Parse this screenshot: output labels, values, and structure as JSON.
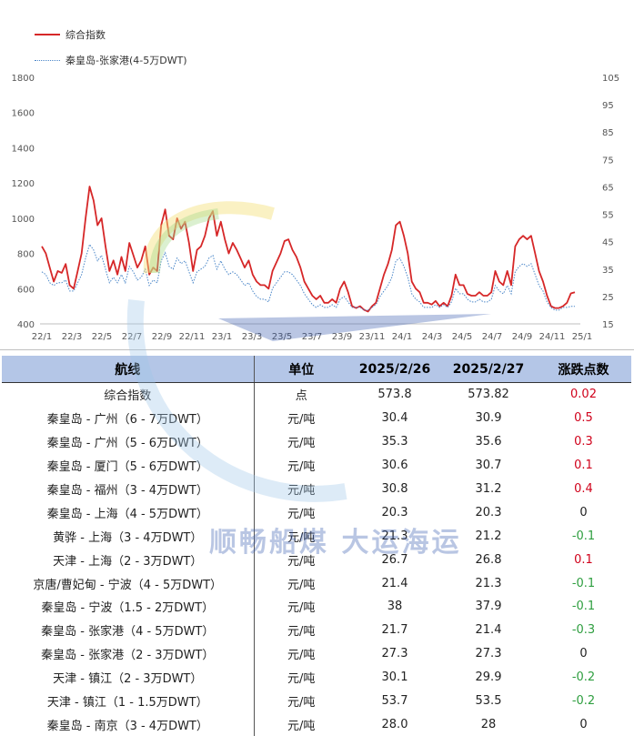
{
  "chart_data": {
    "type": "line",
    "legend": [
      "综合指数",
      "秦皇岛-张家港(4-5万DWT)"
    ],
    "legend_placement": "top-left",
    "colors": {
      "index": "#d62728",
      "route": "#4a86c8"
    },
    "x_ticks": [
      "22/1",
      "22/3",
      "22/5",
      "22/7",
      "22/9",
      "22/11",
      "23/1",
      "23/3",
      "23/5",
      "23/7",
      "23/9",
      "23/11",
      "24/1",
      "24/3",
      "24/5",
      "24/7",
      "24/9",
      "24/11",
      "25/1"
    ],
    "y_left_ticks": [
      "400",
      "600",
      "800",
      "1000",
      "1200",
      "1400",
      "1600",
      "1800"
    ],
    "y_left_range": [
      400,
      1800
    ],
    "y_right_ticks": [
      "15",
      "25",
      "35",
      "45",
      "55",
      "65",
      "75",
      "85",
      "95",
      "105"
    ],
    "y_right_range": [
      15,
      105
    ],
    "grid": false,
    "series": [
      {
        "name": "综合指数",
        "axis": "left",
        "values": [
          840,
          800,
          720,
          640,
          700,
          690,
          740,
          620,
          600,
          700,
          800,
          1000,
          1180,
          1100,
          960,
          1000,
          840,
          700,
          760,
          680,
          780,
          700,
          860,
          790,
          720,
          760,
          840,
          680,
          720,
          700,
          960,
          1050,
          900,
          880,
          1000,
          940,
          980,
          860,
          700,
          820,
          840,
          900,
          1000,
          1040,
          900,
          980,
          880,
          800,
          860,
          820,
          770,
          720,
          760,
          680,
          640,
          620,
          620,
          600,
          700,
          750,
          800,
          870,
          880,
          820,
          780,
          720,
          640,
          600,
          560,
          540,
          560,
          520,
          520,
          540,
          520,
          600,
          640,
          580,
          500,
          490,
          500,
          480,
          470,
          500,
          520,
          600,
          680,
          740,
          820,
          960,
          980,
          900,
          800,
          640,
          600,
          580,
          520,
          520,
          510,
          530,
          500,
          520,
          500,
          560,
          680,
          620,
          620,
          570,
          560,
          560,
          580,
          560,
          560,
          580,
          700,
          640,
          620,
          700,
          620,
          840,
          880,
          900,
          880,
          900,
          800,
          700,
          640,
          560,
          500,
          490,
          490,
          500,
          520,
          573,
          580
        ]
      },
      {
        "name": "秦皇岛-张家港(4-5万DWT)",
        "axis": "right",
        "values": [
          34,
          33,
          30,
          29,
          30,
          30,
          31,
          27,
          27,
          30,
          33,
          39,
          44,
          42,
          38,
          40,
          35,
          30,
          32,
          30,
          33,
          30,
          36,
          34,
          31,
          32,
          35,
          29,
          31,
          30,
          38,
          41,
          36,
          35,
          39,
          37,
          38,
          34,
          30,
          34,
          35,
          36,
          39,
          40,
          35,
          38,
          35,
          33,
          34,
          33,
          31,
          29,
          30,
          27,
          25,
          24,
          24,
          23,
          28,
          30,
          32,
          34,
          34,
          33,
          31,
          29,
          26,
          24,
          22,
          21,
          22,
          21,
          21,
          22,
          21,
          24,
          25,
          23,
          21,
          21,
          21,
          20,
          20,
          21,
          22,
          25,
          27,
          29,
          32,
          38,
          39,
          36,
          32,
          26,
          24,
          23,
          21,
          21,
          21,
          22,
          21,
          22,
          21,
          23,
          28,
          26,
          26,
          24,
          23,
          23,
          24,
          23,
          23,
          24,
          29,
          27,
          26,
          29,
          26,
          34,
          36,
          37,
          36,
          37,
          33,
          29,
          27,
          23,
          21,
          20,
          20,
          21,
          21,
          21.4,
          21.4
        ]
      }
    ]
  },
  "table": {
    "headers": [
      "航线",
      "单位",
      "2025/2/26",
      "2025/2/27",
      "涨跌点数"
    ],
    "rows": [
      {
        "route": "综合指数",
        "unit": "点",
        "v1": "573.8",
        "v2": "573.82",
        "change": "0.02",
        "dir": "up"
      },
      {
        "route": "秦皇岛 - 广州（6 - 7万DWT）",
        "unit": "元/吨",
        "v1": "30.4",
        "v2": "30.9",
        "change": "0.5",
        "dir": "up"
      },
      {
        "route": "秦皇岛 - 广州（5 - 6万DWT）",
        "unit": "元/吨",
        "v1": "35.3",
        "v2": "35.6",
        "change": "0.3",
        "dir": "up"
      },
      {
        "route": "秦皇岛 - 厦门（5 - 6万DWT）",
        "unit": "元/吨",
        "v1": "30.6",
        "v2": "30.7",
        "change": "0.1",
        "dir": "up"
      },
      {
        "route": "秦皇岛 - 福州（3 - 4万DWT）",
        "unit": "元/吨",
        "v1": "30.8",
        "v2": "31.2",
        "change": "0.4",
        "dir": "up"
      },
      {
        "route": "秦皇岛 - 上海（4 - 5万DWT）",
        "unit": "元/吨",
        "v1": "20.3",
        "v2": "20.3",
        "change": "0",
        "dir": "flat"
      },
      {
        "route": "黄骅 - 上海（3 - 4万DWT）",
        "unit": "元/吨",
        "v1": "21.3",
        "v2": "21.2",
        "change": "-0.1",
        "dir": "down"
      },
      {
        "route": "天津 - 上海（2 - 3万DWT）",
        "unit": "元/吨",
        "v1": "26.7",
        "v2": "26.8",
        "change": "0.1",
        "dir": "up"
      },
      {
        "route": "京唐/曹妃甸 - 宁波（4 - 5万DWT）",
        "unit": "元/吨",
        "v1": "21.4",
        "v2": "21.3",
        "change": "-0.1",
        "dir": "down"
      },
      {
        "route": "秦皇岛 - 宁波（1.5 - 2万DWT）",
        "unit": "元/吨",
        "v1": "38",
        "v2": "37.9",
        "change": "-0.1",
        "dir": "down"
      },
      {
        "route": "秦皇岛 - 张家港（4 - 5万DWT）",
        "unit": "元/吨",
        "v1": "21.7",
        "v2": "21.4",
        "change": "-0.3",
        "dir": "down"
      },
      {
        "route": "秦皇岛 - 张家港（2 - 3万DWT）",
        "unit": "元/吨",
        "v1": "27.3",
        "v2": "27.3",
        "change": "0",
        "dir": "flat"
      },
      {
        "route": "天津 - 镇江（2 - 3万DWT）",
        "unit": "元/吨",
        "v1": "30.1",
        "v2": "29.9",
        "change": "-0.2",
        "dir": "down"
      },
      {
        "route": "天津 - 镇江（1 - 1.5万DWT）",
        "unit": "元/吨",
        "v1": "53.7",
        "v2": "53.5",
        "change": "-0.2",
        "dir": "down"
      },
      {
        "route": "秦皇岛 - 南京（3 - 4万DWT）",
        "unit": "元/吨",
        "v1": "28.0",
        "v2": "28",
        "change": "0",
        "dir": "flat"
      }
    ]
  },
  "watermark": {
    "text": "顺畅船煤 大运海运",
    "color": "#3a5db0"
  }
}
